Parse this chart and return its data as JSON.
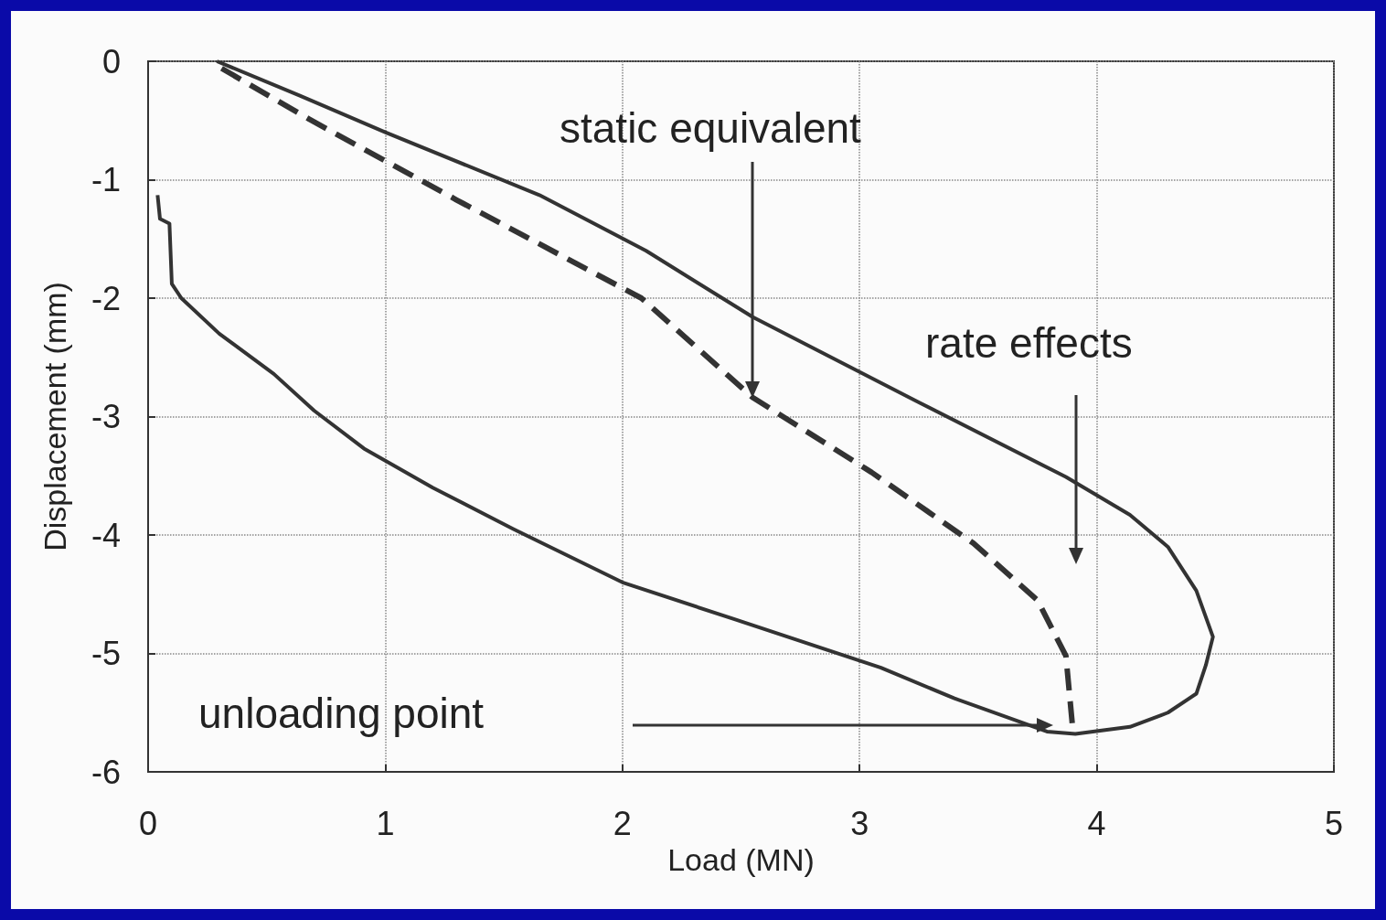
{
  "chart_data": {
    "type": "line",
    "xlabel": "Load (MN)",
    "ylabel": "Displacement (mm)",
    "xlim": [
      0,
      5
    ],
    "xticks": [
      0,
      1,
      2,
      3,
      4,
      5
    ],
    "ylim": [
      -6,
      0
    ],
    "yticks": [
      -6,
      -5,
      -4,
      -3,
      -2,
      -1,
      0
    ],
    "grid": true,
    "marker": "none",
    "series": [
      {
        "color": "#333333",
        "line_style": "solid",
        "x": [
          0.29,
          0.64,
          1.0,
          1.65,
          2.1,
          2.55,
          3.25,
          3.87,
          4.14,
          4.3,
          4.42,
          4.49,
          4.46,
          4.42,
          4.3,
          4.14,
          3.91,
          3.79,
          3.4,
          3.09,
          2.47,
          2.0,
          1.54,
          1.2,
          0.91,
          0.7,
          0.53,
          0.3,
          0.14,
          0.1,
          0.09,
          0.05,
          0.04
        ],
        "values": [
          0,
          -0.29,
          -0.6,
          -1.13,
          -1.6,
          -2.16,
          -2.88,
          -3.51,
          -3.83,
          -4.1,
          -4.47,
          -4.86,
          -5.1,
          -5.34,
          -5.5,
          -5.62,
          -5.68,
          -5.66,
          -5.38,
          -5.12,
          -4.71,
          -4.4,
          -3.95,
          -3.6,
          -3.27,
          -2.95,
          -2.64,
          -2.3,
          -2.0,
          -1.88,
          -1.37,
          -1.33,
          -1.13
        ]
      },
      {
        "color": "#333333",
        "line_style": "dashed",
        "x": [
          0.31,
          0.68,
          1.3,
          2.08,
          2.55,
          3.05,
          3.48,
          3.75,
          3.87,
          3.9
        ],
        "values": [
          -0.06,
          -0.49,
          -1.17,
          -2.0,
          -2.84,
          -3.47,
          -4.07,
          -4.55,
          -5.02,
          -5.66
        ]
      }
    ],
    "annotations": [
      "static equivalent",
      "rate effects",
      "unloading point"
    ]
  }
}
